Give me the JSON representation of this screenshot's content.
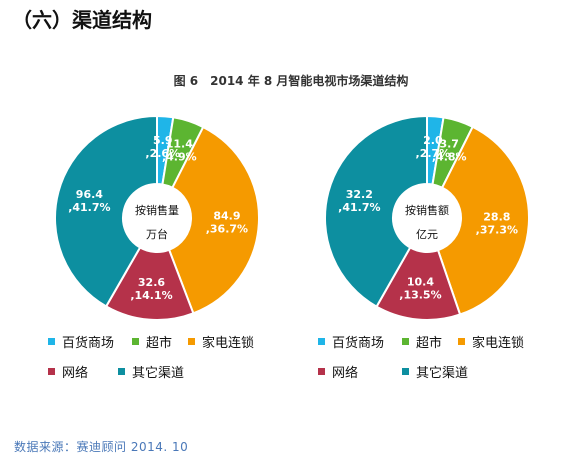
{
  "heading": "（六）渠道结构",
  "figure_title": "图 6　2014 年 8 月智能电视市场渠道结构",
  "colors": [
    "#1fb5e8",
    "#5cb531",
    "#f59a00",
    "#b5324a",
    "#0d8fa0"
  ],
  "chart_data": [
    {
      "type": "pie",
      "center_label": [
        "按销售量",
        "万台"
      ],
      "categories": [
        "百货商场",
        "超市",
        "家电连锁",
        "网络",
        "其它渠道"
      ],
      "values": [
        5.9,
        11.4,
        84.9,
        32.6,
        96.4
      ],
      "percents": [
        "2.6%",
        "4.9%",
        "36.7%",
        "14.1%",
        "41.7%"
      ],
      "data_labels": [
        {
          "value": "5.9",
          "percent": ",2.6%"
        },
        {
          "value": "11.4",
          "percent": ",4.9%"
        },
        {
          "value": "84.9",
          "percent": ",36.7%"
        },
        {
          "value": "32.6",
          "percent": ",14.1%"
        },
        {
          "value": "96.4",
          "percent": ",41.7%"
        }
      ]
    },
    {
      "type": "pie",
      "center_label": [
        "按销售额",
        "亿元"
      ],
      "categories": [
        "百货商场",
        "超市",
        "家电连锁",
        "网络",
        "其它渠道"
      ],
      "values": [
        2.0,
        3.7,
        28.8,
        10.4,
        32.2
      ],
      "percents": [
        "2.7%",
        "4.8%",
        "37.3%",
        "13.5%",
        "41.7%"
      ],
      "data_labels": [
        {
          "value": "2.0",
          "percent": ",2.7%"
        },
        {
          "value": "3.7",
          "percent": ",4.8%"
        },
        {
          "value": "28.8",
          "percent": ",37.3%"
        },
        {
          "value": "10.4",
          "percent": ",13.5%"
        },
        {
          "value": "32.2",
          "percent": ",41.7%"
        }
      ]
    }
  ],
  "legend": [
    "百货商场",
    "超市",
    "家电连锁",
    "网络",
    "其它渠道"
  ],
  "source": "数据来源：赛迪顾问 2014. 10"
}
